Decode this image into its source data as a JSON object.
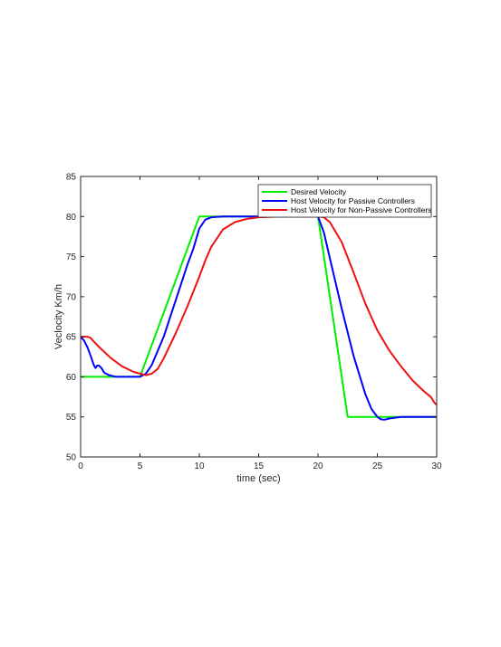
{
  "chart_data": {
    "type": "line",
    "title": "",
    "xlabel": "time (sec)",
    "ylabel": "Veclocity Km/h",
    "xlim": [
      0,
      30
    ],
    "ylim": [
      50,
      85
    ],
    "x_ticks": [
      0,
      5,
      10,
      15,
      20,
      25,
      30
    ],
    "y_ticks": [
      50,
      55,
      60,
      65,
      70,
      75,
      80,
      85
    ],
    "grid": false,
    "legend_position": "top-right",
    "series": [
      {
        "name": "Desired Velocity",
        "color": "#00ee00",
        "points": [
          [
            0,
            60
          ],
          [
            5,
            60
          ],
          [
            10,
            80
          ],
          [
            20,
            80
          ],
          [
            22.5,
            55
          ],
          [
            30,
            55
          ]
        ]
      },
      {
        "name": "Host Velocity for Passive Controllers",
        "color": "#0000ff",
        "points": [
          [
            0,
            65
          ],
          [
            0.3,
            64.5
          ],
          [
            0.6,
            63.6
          ],
          [
            0.9,
            62.4
          ],
          [
            1.1,
            61.5
          ],
          [
            1.25,
            61.1
          ],
          [
            1.4,
            61.4
          ],
          [
            1.55,
            61.4
          ],
          [
            1.75,
            61.1
          ],
          [
            2,
            60.5
          ],
          [
            2.4,
            60.2
          ],
          [
            3,
            60
          ],
          [
            4,
            60
          ],
          [
            5,
            60
          ],
          [
            5.5,
            60.4
          ],
          [
            6,
            61.5
          ],
          [
            7,
            65
          ],
          [
            8,
            69.5
          ],
          [
            9,
            74
          ],
          [
            9.5,
            76
          ],
          [
            10,
            78.5
          ],
          [
            10.5,
            79.6
          ],
          [
            11,
            79.9
          ],
          [
            12,
            80
          ],
          [
            20,
            80
          ],
          [
            20.5,
            78
          ],
          [
            21,
            74.8
          ],
          [
            22,
            68.5
          ],
          [
            23,
            62.6
          ],
          [
            24,
            57.8
          ],
          [
            24.5,
            56
          ],
          [
            25,
            55
          ],
          [
            25.3,
            54.7
          ],
          [
            25.6,
            54.65
          ],
          [
            26,
            54.8
          ],
          [
            27,
            55
          ],
          [
            30,
            55
          ]
        ]
      },
      {
        "name": "Host Velocity for Non-Passive Controllers",
        "color": "#ee1111",
        "points": [
          [
            0,
            65
          ],
          [
            0.6,
            65
          ],
          [
            0.8,
            64.9
          ],
          [
            1.5,
            63.8
          ],
          [
            2.5,
            62.4
          ],
          [
            3.5,
            61.3
          ],
          [
            4.5,
            60.6
          ],
          [
            5,
            60.4
          ],
          [
            5.5,
            60.2
          ],
          [
            6,
            60.4
          ],
          [
            6.5,
            61
          ],
          [
            7,
            62.3
          ],
          [
            8,
            65.4
          ],
          [
            9,
            68.8
          ],
          [
            10,
            72.5
          ],
          [
            10.5,
            74.5
          ],
          [
            11,
            76.2
          ],
          [
            12,
            78.4
          ],
          [
            13,
            79.3
          ],
          [
            14,
            79.7
          ],
          [
            15,
            79.9
          ],
          [
            17,
            80
          ],
          [
            20,
            80
          ],
          [
            20.5,
            79.9
          ],
          [
            21,
            79.3
          ],
          [
            22,
            76.8
          ],
          [
            23,
            73
          ],
          [
            24,
            69.1
          ],
          [
            25,
            65.8
          ],
          [
            26,
            63.3
          ],
          [
            27,
            61.3
          ],
          [
            28,
            59.5
          ],
          [
            29,
            58.1
          ],
          [
            29.5,
            57.5
          ],
          [
            29.8,
            56.8
          ],
          [
            30,
            56.5
          ]
        ]
      }
    ]
  }
}
